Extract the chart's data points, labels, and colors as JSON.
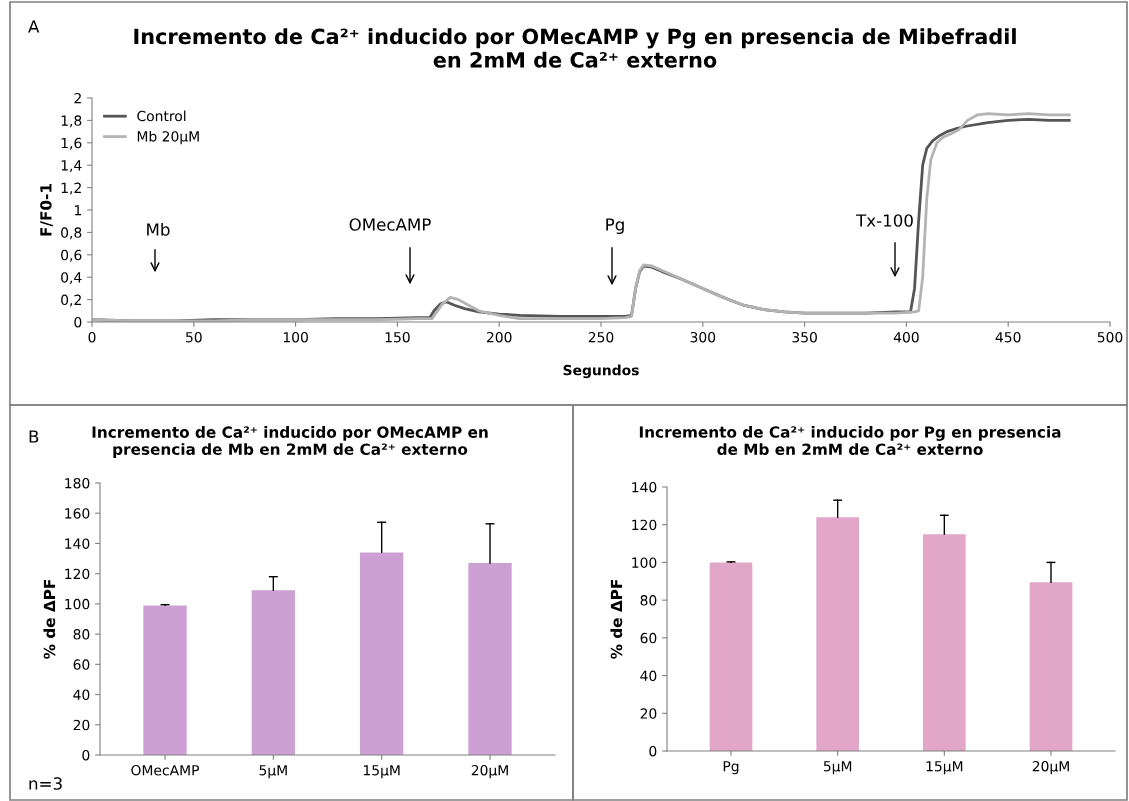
{
  "chart_data": [
    {
      "type": "line",
      "title": "Incremento de Ca²⁺ inducido por OMecAMP y Pg en presencia de Mibefradil\nen 2mM de Ca²⁺ externo",
      "xlabel": "Segundos",
      "ylabel": "F/F0-1",
      "legend": "top left",
      "grid": false,
      "xlim": [
        0,
        500
      ],
      "xticks": [
        0,
        50,
        100,
        150,
        200,
        250,
        300,
        350,
        400,
        450,
        500
      ],
      "ylim": [
        0,
        2
      ],
      "yticks": [
        0,
        {
          "value": 0.2,
          "label": "0,2"
        },
        {
          "value": 0.4,
          "label": "0,4"
        },
        {
          "value": 0.6,
          "label": "0,6"
        },
        {
          "value": 0.8,
          "label": "0,8"
        },
        1,
        {
          "value": 1.2,
          "label": "1,2"
        },
        {
          "value": 1.4,
          "label": "1,4"
        },
        {
          "value": 1.6,
          "label": "1,6"
        },
        {
          "value": 1.8,
          "label": "1,8"
        },
        2
      ],
      "series": [
        {
          "name": "Control",
          "color": "#555555",
          "x": [
            0,
            20,
            40,
            60,
            80,
            100,
            120,
            140,
            160,
            166,
            168,
            171,
            174,
            178,
            183,
            190,
            200,
            210,
            230,
            250,
            262,
            265,
            267,
            269,
            271,
            275,
            280,
            290,
            300,
            310,
            320,
            330,
            340,
            350,
            360,
            380,
            395,
            402,
            404,
            406,
            408,
            410,
            413,
            416,
            420,
            425,
            430,
            440,
            450,
            460,
            470,
            480
          ],
          "values": [
            0.02,
            0.01,
            0.01,
            0.02,
            0.02,
            0.02,
            0.03,
            0.03,
            0.04,
            0.04,
            0.1,
            0.16,
            0.18,
            0.15,
            0.12,
            0.09,
            0.07,
            0.06,
            0.05,
            0.05,
            0.05,
            0.06,
            0.3,
            0.45,
            0.5,
            0.49,
            0.45,
            0.38,
            0.3,
            0.22,
            0.15,
            0.11,
            0.09,
            0.08,
            0.08,
            0.08,
            0.09,
            0.09,
            0.3,
            0.9,
            1.4,
            1.55,
            1.62,
            1.66,
            1.7,
            1.73,
            1.75,
            1.78,
            1.8,
            1.81,
            1.8,
            1.8
          ]
        },
        {
          "name": "Mb 20µM",
          "color": "#b3b3b3",
          "x": [
            0,
            20,
            40,
            60,
            80,
            100,
            120,
            140,
            160,
            167,
            169,
            172,
            176,
            180,
            185,
            190,
            200,
            210,
            230,
            250,
            262,
            265,
            267,
            269,
            271,
            275,
            280,
            290,
            300,
            310,
            320,
            330,
            340,
            350,
            360,
            380,
            395,
            404,
            406,
            408,
            410,
            412,
            415,
            418,
            422,
            426,
            430,
            435,
            440,
            450,
            460,
            470,
            480
          ],
          "values": [
            0.02,
            0.01,
            0.01,
            0.01,
            0.02,
            0.02,
            0.02,
            0.02,
            0.03,
            0.03,
            0.08,
            0.16,
            0.22,
            0.2,
            0.15,
            0.1,
            0.06,
            0.03,
            0.03,
            0.03,
            0.04,
            0.05,
            0.3,
            0.46,
            0.51,
            0.5,
            0.46,
            0.38,
            0.3,
            0.22,
            0.15,
            0.11,
            0.09,
            0.08,
            0.08,
            0.08,
            0.08,
            0.09,
            0.1,
            0.4,
            1.1,
            1.45,
            1.6,
            1.65,
            1.68,
            1.72,
            1.8,
            1.85,
            1.86,
            1.85,
            1.86,
            1.85,
            1.85
          ]
        }
      ],
      "annotations": [
        "Mb",
        "OMecAMP",
        "Pg",
        "Tx-100",
        "A"
      ]
    },
    {
      "type": "bar",
      "title": "Incremento de Ca²⁺ inducido por OMecAMP en\npresencia de Mb en 2mM de Ca²⁺ externo",
      "ylabel": "% de ΔPF",
      "categories": [
        "OMecAMP",
        "5µM",
        "15µM",
        "20µM"
      ],
      "values": [
        99,
        109,
        134,
        127
      ],
      "errors": [
        [
          99,
          99.5
        ],
        [
          109,
          118
        ],
        [
          134,
          154
        ],
        [
          127,
          153
        ]
      ],
      "color": "#cda0d4",
      "ylim": [
        0,
        180
      ],
      "yticks": [
        0,
        20,
        40,
        60,
        80,
        100,
        120,
        140,
        160,
        180
      ],
      "grid": false,
      "legend": false,
      "annotations": [
        "B",
        "n=3"
      ]
    },
    {
      "type": "bar",
      "title": "Incremento de Ca²⁺ inducido por Pg en presencia\nde Mb en 2mM de Ca²⁺ externo",
      "ylabel": "% de ΔPF",
      "categories": [
        "Pg",
        "5µM",
        "15µM",
        "20µM"
      ],
      "values": [
        100,
        124,
        115,
        89.5
      ],
      "errors": [
        [
          100,
          100.3
        ],
        [
          124,
          133
        ],
        [
          115,
          125
        ],
        [
          89.5,
          100
        ]
      ],
      "color": "#e2a6c8",
      "ylim": [
        0,
        140
      ],
      "yticks": [
        0,
        20,
        40,
        60,
        80,
        100,
        120,
        140
      ],
      "grid": false,
      "legend": false
    }
  ]
}
